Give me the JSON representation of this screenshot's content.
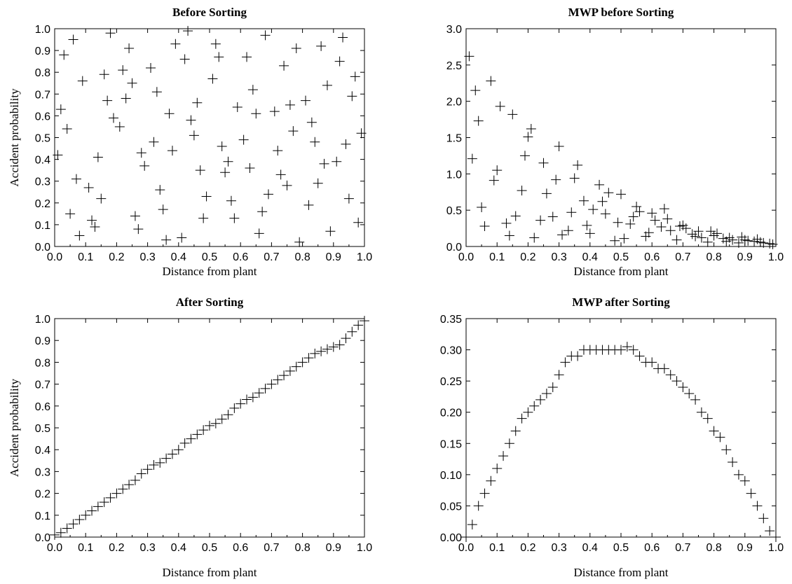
{
  "chart_data": [
    {
      "type": "scatter",
      "title": "Before Sorting",
      "xlabel": "Distance from plant",
      "ylabel": "Accident probability",
      "xlim": [
        0,
        1
      ],
      "ylim": [
        0,
        1
      ],
      "xticks": [
        "0.0",
        "0.1",
        "0.2",
        "0.3",
        "0.4",
        "0.5",
        "0.6",
        "0.7",
        "0.8",
        "0.9",
        "1.0"
      ],
      "yticks": [
        "0.0",
        "0.1",
        "0.2",
        "0.3",
        "0.4",
        "0.5",
        "0.6",
        "0.7",
        "0.8",
        "0.9",
        "1.0"
      ],
      "grid": false,
      "marker": "plus",
      "x": [
        0.03,
        0.12,
        0.21,
        0.33,
        0.41,
        0.52,
        0.63,
        0.71,
        0.82,
        0.94,
        0.07,
        0.16,
        0.27,
        0.38,
        0.46,
        0.57,
        0.68,
        0.77,
        0.88,
        0.98,
        0.02,
        0.14,
        0.24,
        0.35,
        0.44,
        0.55,
        0.66,
        0.74,
        0.85,
        0.96,
        0.05,
        0.18,
        0.29,
        0.31,
        0.49,
        0.59,
        0.61,
        0.79,
        0.86,
        0.91,
        0.09,
        0.11,
        0.23,
        0.36,
        0.42,
        0.54,
        0.64,
        0.73,
        0.83,
        0.93,
        0.01,
        0.19,
        0.26,
        0.39,
        0.47,
        0.51,
        0.69,
        0.76,
        0.89,
        0.99,
        0.06,
        0.13,
        0.22,
        0.34,
        0.45,
        0.58,
        0.62,
        0.72,
        0.81,
        0.95,
        0.08,
        0.17,
        0.28,
        0.37,
        0.43,
        0.56,
        0.67,
        0.78,
        0.84,
        0.92,
        0.04,
        0.15,
        0.25,
        0.32,
        0.48,
        0.53,
        0.65,
        0.75,
        0.87,
        0.97
      ],
      "y": [
        0.88,
        0.12,
        0.55,
        0.71,
        0.04,
        0.93,
        0.36,
        0.62,
        0.19,
        0.47,
        0.31,
        0.79,
        0.08,
        0.44,
        0.66,
        0.21,
        0.97,
        0.53,
        0.74,
        0.11,
        0.63,
        0.41,
        0.91,
        0.17,
        0.58,
        0.34,
        0.06,
        0.83,
        0.29,
        0.69,
        0.15,
        0.98,
        0.37,
        0.82,
        0.23,
        0.64,
        0.49,
        0.02,
        0.92,
        0.39,
        0.76,
        0.27,
        0.68,
        0.03,
        0.86,
        0.46,
        0.72,
        0.33,
        0.57,
        0.96,
        0.42,
        0.59,
        0.14,
        0.93,
        0.35,
        0.77,
        0.24,
        0.65,
        0.07,
        0.52,
        0.95,
        0.09,
        0.81,
        0.26,
        0.51,
        0.13,
        0.87,
        0.44,
        0.67,
        0.22,
        0.05,
        0.67,
        0.43,
        0.61,
        0.99,
        0.39,
        0.16,
        0.91,
        0.48,
        0.85,
        0.54,
        0.22,
        0.75,
        0.48,
        0.13,
        0.87,
        0.61,
        0.28,
        0.38,
        0.78
      ]
    },
    {
      "type": "scatter",
      "title": "MWP before Sorting",
      "xlabel": "Distance from plant",
      "ylabel": "",
      "xlim": [
        0,
        1
      ],
      "ylim": [
        0,
        3
      ],
      "xticks": [
        "0.0",
        "0.1",
        "0.2",
        "0.3",
        "0.4",
        "0.5",
        "0.6",
        "0.7",
        "0.8",
        "0.9",
        "1.0"
      ],
      "yticks": [
        "0.0",
        "0.5",
        "1.0",
        "1.5",
        "2.0",
        "2.5",
        "3.0"
      ],
      "grid": false,
      "marker": "plus",
      "x": [
        0.01,
        0.03,
        0.05,
        0.08,
        0.1,
        0.13,
        0.15,
        0.18,
        0.2,
        0.22,
        0.25,
        0.28,
        0.3,
        0.33,
        0.35,
        0.38,
        0.4,
        0.43,
        0.45,
        0.48,
        0.5,
        0.53,
        0.55,
        0.58,
        0.6,
        0.63,
        0.65,
        0.68,
        0.7,
        0.73,
        0.75,
        0.78,
        0.8,
        0.83,
        0.85,
        0.88,
        0.9,
        0.93,
        0.95,
        0.98,
        0.02,
        0.06,
        0.11,
        0.16,
        0.21,
        0.26,
        0.31,
        0.36,
        0.41,
        0.46,
        0.51,
        0.56,
        0.61,
        0.66,
        0.71,
        0.76,
        0.81,
        0.86,
        0.91,
        0.96,
        0.04,
        0.09,
        0.14,
        0.19,
        0.24,
        0.29,
        0.34,
        0.39,
        0.44,
        0.49,
        0.54,
        0.59,
        0.64,
        0.69,
        0.74,
        0.79,
        0.84,
        0.89,
        0.94,
        0.99
      ],
      "y": [
        2.62,
        2.15,
        0.54,
        2.28,
        1.05,
        0.32,
        1.82,
        0.77,
        1.51,
        0.12,
        1.15,
        0.41,
        1.38,
        0.22,
        0.94,
        0.63,
        0.18,
        0.85,
        0.45,
        0.08,
        0.72,
        0.31,
        0.55,
        0.14,
        0.46,
        0.27,
        0.38,
        0.09,
        0.29,
        0.17,
        0.21,
        0.06,
        0.15,
        0.11,
        0.12,
        0.05,
        0.09,
        0.07,
        0.06,
        0.04,
        1.21,
        0.28,
        1.93,
        0.42,
        1.62,
        0.73,
        0.16,
        1.12,
        0.51,
        0.74,
        0.11,
        0.48,
        0.36,
        0.22,
        0.25,
        0.12,
        0.18,
        0.09,
        0.08,
        0.05,
        1.73,
        0.91,
        0.15,
        1.25,
        0.36,
        0.92,
        0.47,
        0.29,
        0.62,
        0.33,
        0.41,
        0.19,
        0.52,
        0.28,
        0.14,
        0.21,
        0.07,
        0.13,
        0.1,
        0.03
      ]
    },
    {
      "type": "scatter",
      "title": "After Sorting",
      "xlabel": "Distance from plant",
      "ylabel": "Accident probability",
      "xlim": [
        0,
        1
      ],
      "ylim": [
        0,
        1
      ],
      "xticks": [
        "0.0",
        "0.1",
        "0.2",
        "0.3",
        "0.4",
        "0.5",
        "0.6",
        "0.7",
        "0.8",
        "0.9",
        "1.0"
      ],
      "yticks": [
        "0.0",
        "0.1",
        "0.2",
        "0.3",
        "0.4",
        "0.5",
        "0.6",
        "0.7",
        "0.8",
        "0.9",
        "1.0"
      ],
      "grid": false,
      "marker": "plus",
      "x": [
        0.0,
        0.02,
        0.04,
        0.06,
        0.08,
        0.1,
        0.12,
        0.14,
        0.16,
        0.18,
        0.2,
        0.22,
        0.24,
        0.26,
        0.28,
        0.3,
        0.32,
        0.34,
        0.36,
        0.38,
        0.4,
        0.42,
        0.44,
        0.46,
        0.48,
        0.5,
        0.52,
        0.54,
        0.56,
        0.58,
        0.6,
        0.62,
        0.64,
        0.66,
        0.68,
        0.7,
        0.72,
        0.74,
        0.76,
        0.78,
        0.8,
        0.82,
        0.84,
        0.86,
        0.88,
        0.9,
        0.92,
        0.94,
        0.96,
        0.98,
        1.0
      ],
      "y": [
        0.01,
        0.02,
        0.04,
        0.06,
        0.08,
        0.1,
        0.12,
        0.14,
        0.16,
        0.18,
        0.2,
        0.22,
        0.24,
        0.26,
        0.29,
        0.31,
        0.33,
        0.34,
        0.36,
        0.38,
        0.4,
        0.43,
        0.45,
        0.47,
        0.49,
        0.51,
        0.52,
        0.54,
        0.56,
        0.59,
        0.61,
        0.63,
        0.64,
        0.66,
        0.68,
        0.7,
        0.72,
        0.74,
        0.76,
        0.78,
        0.8,
        0.82,
        0.84,
        0.85,
        0.86,
        0.87,
        0.88,
        0.91,
        0.94,
        0.97,
        0.99
      ]
    },
    {
      "type": "scatter",
      "title": "MWP after Sorting",
      "xlabel": "Distance from plant",
      "ylabel": "",
      "xlim": [
        0,
        1
      ],
      "ylim": [
        0,
        0.35
      ],
      "xticks": [
        "0.0",
        "0.1",
        "0.2",
        "0.3",
        "0.4",
        "0.5",
        "0.6",
        "0.7",
        "0.8",
        "0.9",
        "1.0"
      ],
      "yticks": [
        "0.00",
        "0.05",
        "0.10",
        "0.15",
        "0.20",
        "0.25",
        "0.30",
        "0.35"
      ],
      "grid": false,
      "marker": "plus",
      "x": [
        0.0,
        0.02,
        0.04,
        0.06,
        0.08,
        0.1,
        0.12,
        0.14,
        0.16,
        0.18,
        0.2,
        0.22,
        0.24,
        0.26,
        0.28,
        0.3,
        0.32,
        0.34,
        0.36,
        0.38,
        0.4,
        0.42,
        0.44,
        0.46,
        0.48,
        0.5,
        0.52,
        0.54,
        0.56,
        0.58,
        0.6,
        0.62,
        0.64,
        0.66,
        0.68,
        0.7,
        0.72,
        0.74,
        0.76,
        0.78,
        0.8,
        0.82,
        0.84,
        0.86,
        0.88,
        0.9,
        0.92,
        0.94,
        0.96,
        0.98,
        1.0
      ],
      "y": [
        0.0,
        0.02,
        0.05,
        0.07,
        0.09,
        0.11,
        0.13,
        0.15,
        0.17,
        0.19,
        0.2,
        0.21,
        0.22,
        0.23,
        0.24,
        0.26,
        0.28,
        0.29,
        0.29,
        0.3,
        0.3,
        0.3,
        0.3,
        0.3,
        0.3,
        0.3,
        0.305,
        0.3,
        0.29,
        0.28,
        0.28,
        0.27,
        0.27,
        0.26,
        0.25,
        0.24,
        0.23,
        0.22,
        0.2,
        0.19,
        0.17,
        0.16,
        0.14,
        0.12,
        0.1,
        0.09,
        0.07,
        0.05,
        0.03,
        0.01,
        0.0
      ]
    }
  ]
}
